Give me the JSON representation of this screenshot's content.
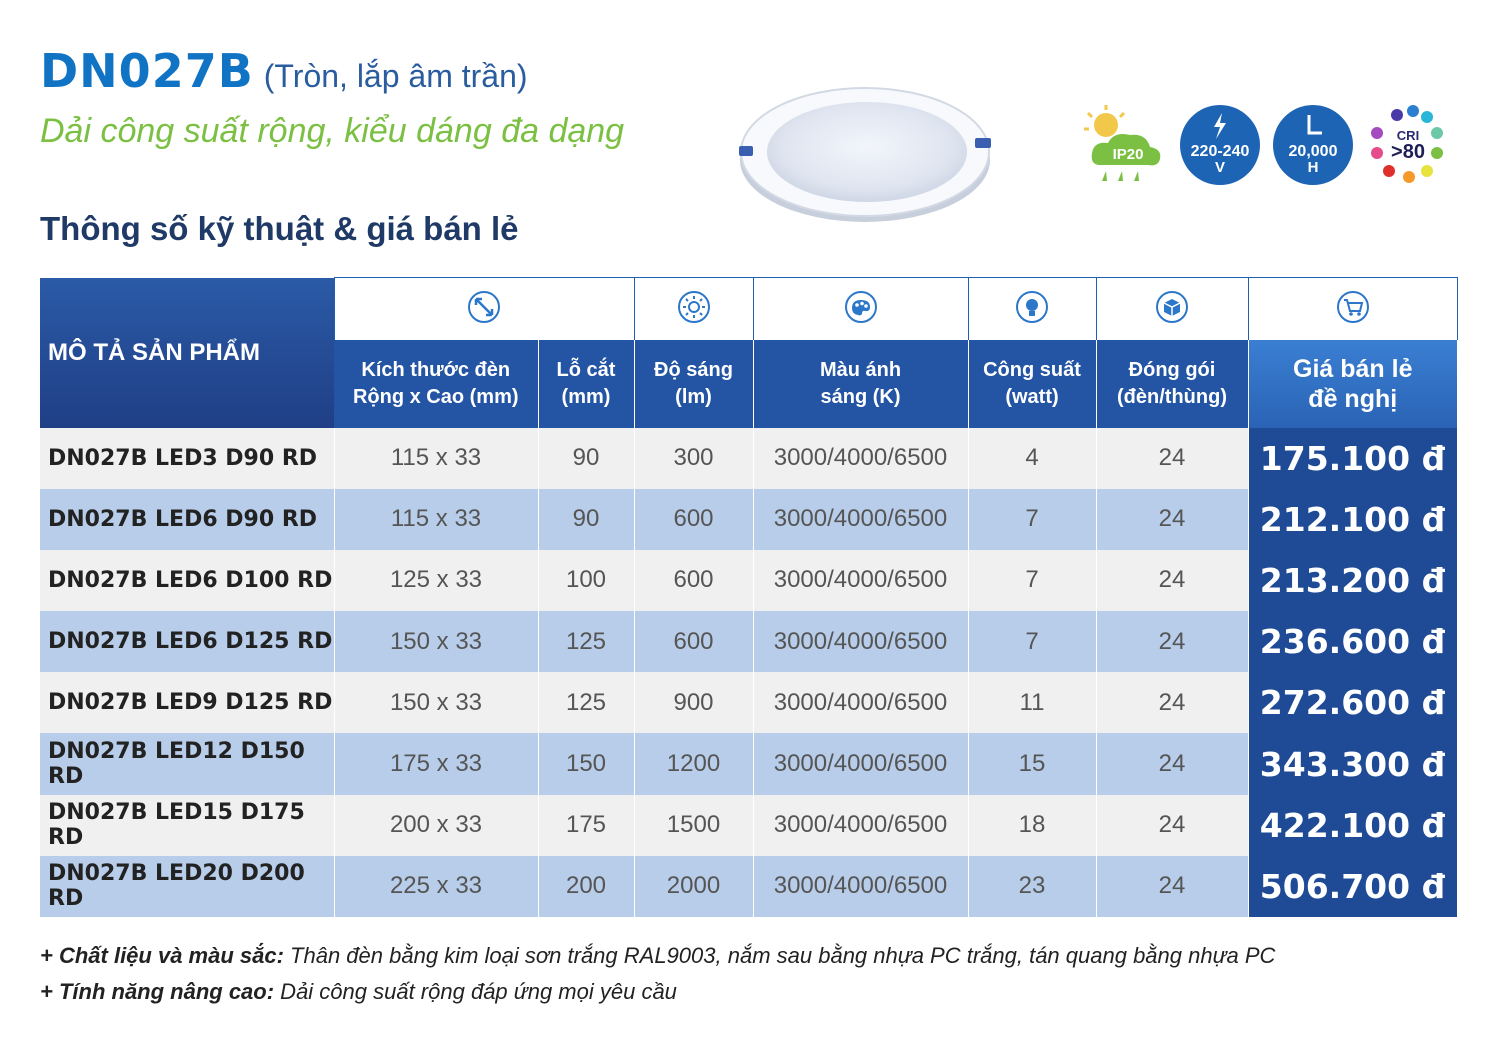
{
  "header": {
    "model": "DN027B",
    "model_sub": "(Tròn, lắp âm trần)",
    "tagline": "Dải công suất rộng, kiểu dáng đa dạng",
    "section_title": "Thông số kỹ thuật & giá bán lẻ"
  },
  "badges": {
    "ip": "IP20",
    "voltage_line1": "220-240",
    "voltage_line2": "V",
    "hours_line1": "20,000",
    "hours_line2": "H",
    "cri_label": "CRI",
    "cri_value": ">80"
  },
  "table": {
    "desc_header": "MÔ TẢ SẢN PHẨM",
    "columns": [
      {
        "icon": "resize-arrow-icon",
        "line1": "Kích thước đèn",
        "line2": "Rộng x Cao (mm)"
      },
      {
        "icon": "",
        "line1": "Lỗ cắt",
        "line2": "(mm)"
      },
      {
        "icon": "sun-icon",
        "line1": "Độ sáng",
        "line2": "(lm)"
      },
      {
        "icon": "palette-icon",
        "line1": "Màu ánh",
        "line2": "sáng (K)"
      },
      {
        "icon": "bulb-icon",
        "line1": "Công suất",
        "line2": "(watt)"
      },
      {
        "icon": "box-icon",
        "line1": "Đóng gói",
        "line2": "(đèn/thùng)"
      },
      {
        "icon": "cart-icon",
        "line1": "Giá bán lẻ",
        "line2": "đề nghị"
      }
    ],
    "rows": [
      {
        "name": "DN027B LED3 D90 RD",
        "size": "115 x 33",
        "cutout": "90",
        "lumen": "300",
        "cct": "3000/4000/6500",
        "watt": "4",
        "pack": "24",
        "price": "175.100 đ"
      },
      {
        "name": "DN027B LED6 D90 RD",
        "size": "115 x 33",
        "cutout": "90",
        "lumen": "600",
        "cct": "3000/4000/6500",
        "watt": "7",
        "pack": "24",
        "price": "212.100 đ"
      },
      {
        "name": "DN027B LED6 D100 RD",
        "size": "125 x 33",
        "cutout": "100",
        "lumen": "600",
        "cct": "3000/4000/6500",
        "watt": "7",
        "pack": "24",
        "price": "213.200 đ"
      },
      {
        "name": "DN027B LED6 D125 RD",
        "size": "150 x 33",
        "cutout": "125",
        "lumen": "600",
        "cct": "3000/4000/6500",
        "watt": "7",
        "pack": "24",
        "price": "236.600 đ"
      },
      {
        "name": "DN027B LED9 D125 RD",
        "size": "150 x 33",
        "cutout": "125",
        "lumen": "900",
        "cct": "3000/4000/6500",
        "watt": "11",
        "pack": "24",
        "price": "272.600 đ"
      },
      {
        "name": "DN027B LED12 D150 RD",
        "size": "175 x 33",
        "cutout": "150",
        "lumen": "1200",
        "cct": "3000/4000/6500",
        "watt": "15",
        "pack": "24",
        "price": "343.300 đ"
      },
      {
        "name": "DN027B LED15 D175 RD",
        "size": "200 x 33",
        "cutout": "175",
        "lumen": "1500",
        "cct": "3000/4000/6500",
        "watt": "18",
        "pack": "24",
        "price": "422.100 đ"
      },
      {
        "name": "DN027B LED20 D200 RD",
        "size": "225 x 33",
        "cutout": "200",
        "lumen": "2000",
        "cct": "3000/4000/6500",
        "watt": "23",
        "pack": "24",
        "price": "506.700 đ"
      }
    ]
  },
  "notes": [
    {
      "label": "+ Chất liệu và màu sắc:",
      "text": " Thân đèn bằng kim loại sơn trắng RAL9003, nắm sau bằng nhựa PC trắng, tán quang bằng nhựa PC"
    },
    {
      "label": "+ Tính năng nâng cao:",
      "text": " Dải công suất rộng đáp ứng mọi yêu cầu"
    }
  ],
  "colors": {
    "brand_blue": "#1173c4",
    "header_navy": "#1f3f86",
    "accent_green": "#7bc043",
    "row_blue": "#b8cde9"
  }
}
